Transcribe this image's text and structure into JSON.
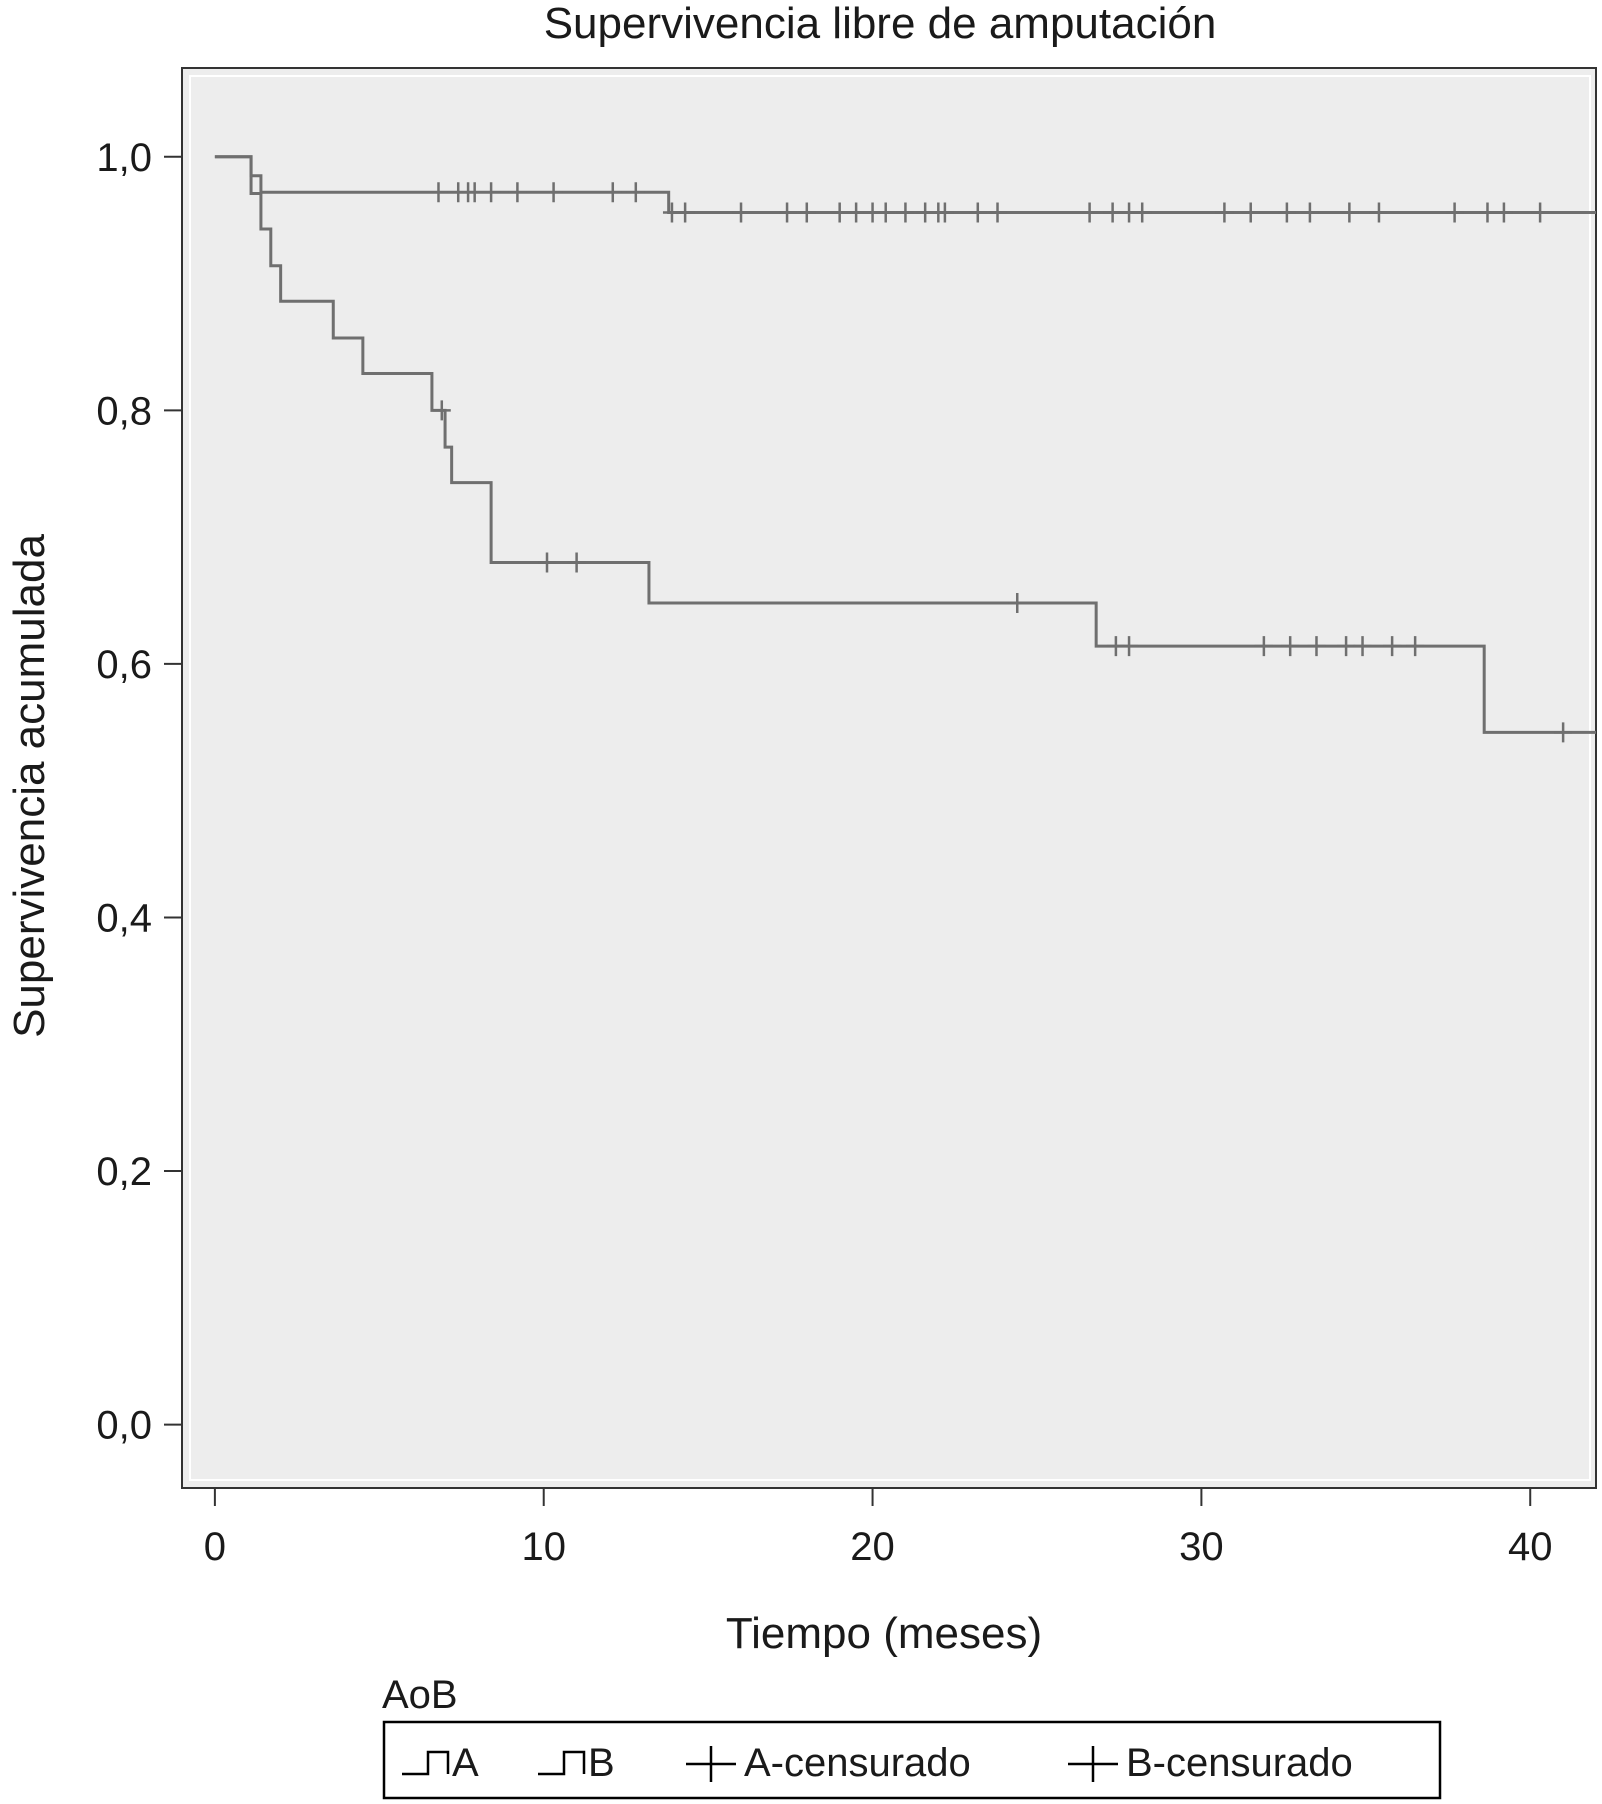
{
  "chart_data": {
    "type": "line",
    "title": "Supervivencia libre de amputación",
    "xlabel": "Tiempo (meses)",
    "ylabel": "Supervivencia acumulada",
    "xlim": [
      -1,
      42
    ],
    "ylim": [
      -0.05,
      1.07
    ],
    "x_ticks": [
      0,
      10,
      20,
      30,
      40
    ],
    "x_tick_labels": [
      "0",
      "10",
      "20",
      "30",
      "40"
    ],
    "y_ticks": [
      0.0,
      0.2,
      0.4,
      0.6,
      0.8,
      1.0
    ],
    "y_tick_labels": [
      "0,0",
      "0,2",
      "0,4",
      "0,6",
      "0,8",
      "1,0"
    ],
    "grid": false,
    "legend": {
      "title": "AoB",
      "position": "bottom",
      "entries": [
        "A",
        "B",
        "A-censurado",
        "B-censurado"
      ]
    },
    "colors": {
      "plot_background": "#ededed",
      "series_line": "#6f6f6f",
      "axis": "#333333"
    },
    "series": [
      {
        "name": "A",
        "step_x": [
          0,
          1.1,
          1.4,
          13.4,
          13.8,
          42
        ],
        "step_y": [
          1.0,
          0.985,
          0.972,
          0.972,
          0.956,
          0.956
        ],
        "censored_x": [
          6.8,
          7.4,
          7.7,
          7.9,
          8.4,
          9.2,
          10.3,
          12.1,
          12.8,
          13.9,
          14.3,
          16.0,
          17.4,
          18.0,
          19.0,
          19.5,
          20.0,
          20.4,
          21.0,
          21.6,
          22.0,
          22.2,
          23.2,
          23.8,
          26.6,
          27.3,
          27.8,
          28.2,
          30.7,
          31.5,
          32.6,
          33.3,
          34.5,
          35.4,
          37.7,
          38.7,
          39.2,
          40.3
        ]
      },
      {
        "name": "B",
        "step_x": [
          0,
          1.1,
          1.4,
          1.7,
          2.0,
          3.6,
          4.5,
          6.6,
          7.0,
          7.2,
          7.6,
          8.4,
          13.2,
          26.8,
          38.6,
          42
        ],
        "step_y": [
          1.0,
          0.971,
          0.943,
          0.914,
          0.886,
          0.857,
          0.829,
          0.8,
          0.771,
          0.743,
          0.743,
          0.68,
          0.648,
          0.614,
          0.546,
          0.546
        ],
        "censored_x": [
          6.9,
          10.1,
          11.0,
          24.4,
          27.4,
          27.8,
          31.9,
          32.7,
          33.5,
          34.4,
          34.9,
          35.8,
          36.5,
          41.0
        ]
      }
    ]
  }
}
